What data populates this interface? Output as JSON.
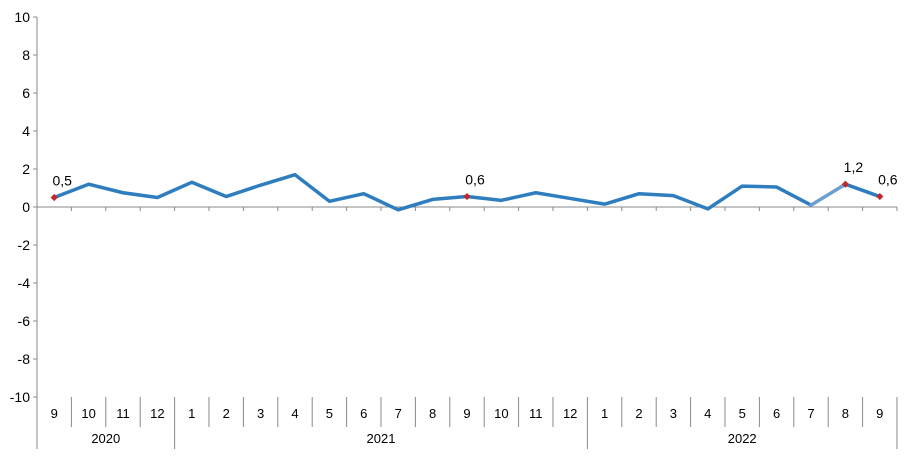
{
  "chart_data": {
    "type": "line",
    "title": "",
    "xlabel": "",
    "ylabel": "",
    "ylim": [
      -10,
      10
    ],
    "yticks": [
      10,
      8,
      6,
      4,
      2,
      0,
      -2,
      -4,
      -6,
      -8,
      -10
    ],
    "ytick_labels": [
      "10",
      "8",
      "6",
      "4",
      "2",
      "0",
      "-2",
      "-4",
      "-6",
      "-8",
      "-10"
    ],
    "grid": false,
    "legend": "none",
    "line_color": "#2e7ebf",
    "highlight_color": "#6f9fd0",
    "marker_color": "#c0282d",
    "categories": [
      "9",
      "10",
      "11",
      "12",
      "1",
      "2",
      "3",
      "4",
      "5",
      "6",
      "7",
      "8",
      "9",
      "10",
      "11",
      "12",
      "1",
      "2",
      "3",
      "4",
      "5",
      "6",
      "7",
      "8",
      "9"
    ],
    "year_groups": [
      {
        "label": "2020",
        "start": 0,
        "end": 3
      },
      {
        "label": "2021",
        "start": 4,
        "end": 15
      },
      {
        "label": "2022",
        "start": 16,
        "end": 24
      }
    ],
    "series": [
      {
        "values": [
          0.5,
          1.2,
          0.75,
          0.5,
          1.3,
          0.55,
          1.15,
          1.7,
          0.3,
          0.7,
          -0.15,
          0.4,
          0.55,
          0.35,
          0.75,
          0.45,
          0.15,
          0.7,
          0.6,
          -0.1,
          1.1,
          1.05,
          0.1,
          1.2,
          0.55
        ]
      }
    ],
    "data_labels": [
      {
        "index": 0,
        "text": "0,5"
      },
      {
        "index": 12,
        "text": "0,6"
      },
      {
        "index": 23,
        "text": "1,2"
      },
      {
        "index": 24,
        "text": "0,6"
      }
    ]
  }
}
